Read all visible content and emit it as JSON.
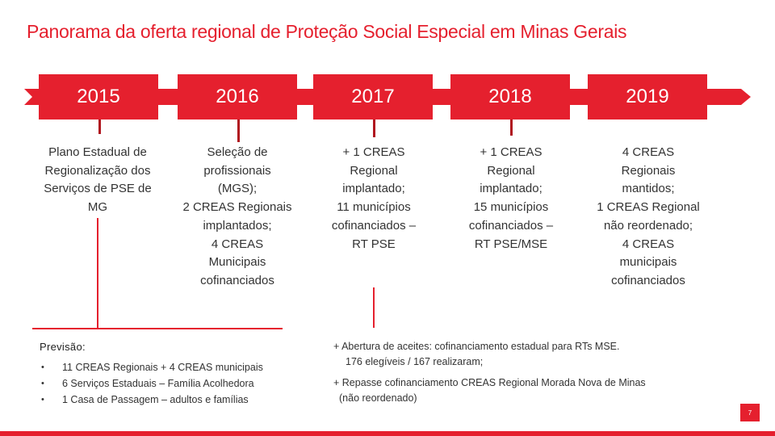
{
  "slide": {
    "title": "Panorama da oferta regional de Proteção Social Especial em Minas Gerais",
    "page_number": "7"
  },
  "colors": {
    "accent": "#e5202e",
    "connector": "#b0151f",
    "text": "#333333"
  },
  "timeline": [
    {
      "year": "2015",
      "text": "Plano Estadual de\nRegionalização dos\nServiços de PSE de\nMG"
    },
    {
      "year": "2016",
      "text": "Seleção de\nprofissionais\n(MGS);\n2 CREAS Regionais\nimplantados;\n4 CREAS\nMunicipais\ncofinanciados"
    },
    {
      "year": "2017",
      "text": "+ 1 CREAS\nRegional\nimplantado;\n11 municípios\ncofinanciados –\nRT PSE"
    },
    {
      "year": "2018",
      "text": "+ 1 CREAS\nRegional\nimplantado;\n15 municípios\ncofinanciados –\nRT PSE/MSE"
    },
    {
      "year": "2019",
      "text": "4 CREAS\nRegionais\nmantidos;\n1 CREAS Regional\nnão reordenado;\n4 CREAS\nmunicipais\ncofinanciados"
    }
  ],
  "forecast": {
    "title": "Previsão:",
    "items": [
      "11 CREAS Regionais + 4 CREAS municipais",
      "6 Serviços Estaduais – Família Acolhedora",
      "1 Casa de Passagem – adultos e famílias"
    ]
  },
  "notes": {
    "aceites_line1": "+ Abertura de aceites: cofinanciamento estadual para RTs MSE.",
    "aceites_line2": "176 elegíveis / 167 realizaram;",
    "repasse_line1": "+ Repasse cofinanciamento CREAS Regional Morada Nova de Minas",
    "repasse_line2": "(não reordenado)"
  }
}
